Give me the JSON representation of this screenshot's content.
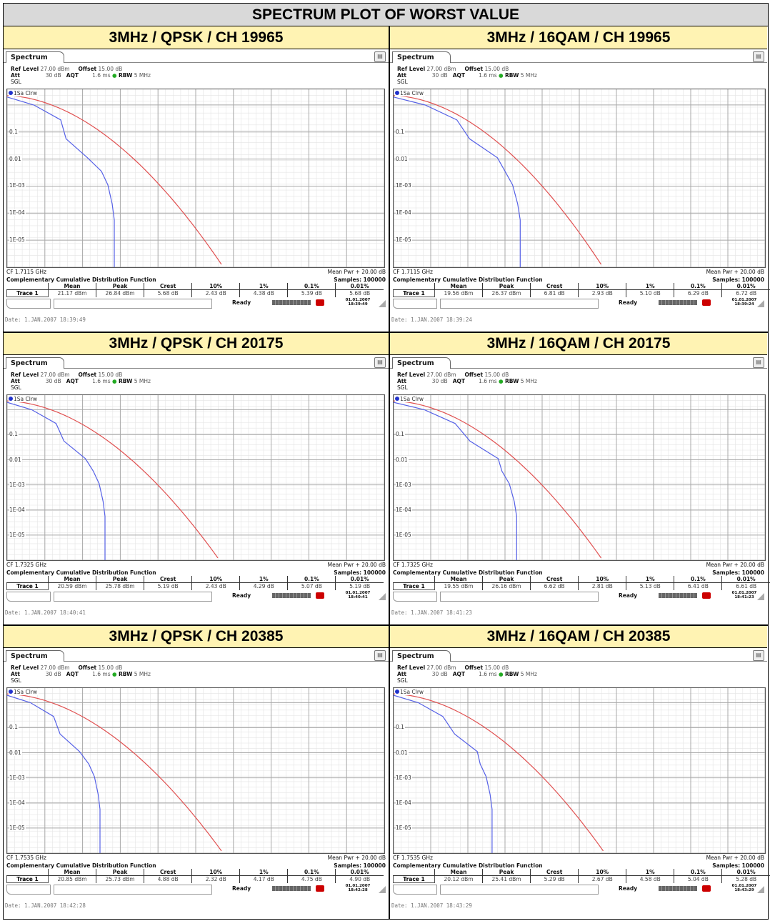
{
  "title": "SPECTRUM PLOT OF WORST VALUE",
  "colors": {
    "header_bg": "#d9d9d9",
    "cell_head_bg": "#fff3b3",
    "red_trace": "#e05050",
    "blue_trace": "#5560e6",
    "grid": "#c8c8c8"
  },
  "common": {
    "tab_label": "Spectrum",
    "ref_level_label": "Ref Level",
    "ref_level": "27.00 dBm",
    "offset_label": "Offset",
    "offset": "15.00 dB",
    "att_label": "Att",
    "att": "30 dB",
    "aqt_label": "AQT",
    "aqt": "1.6 ms",
    "rbw_label": "RBW",
    "rbw": "5 MHz",
    "sgl": "SGL",
    "trace_label": "1Sa Clrw",
    "y_ticks": [
      "0.1",
      "0.01",
      "1E-03",
      "1E-04",
      "1E-05"
    ],
    "mean_pwr": "Mean Pwr + 20.00 dB",
    "ccdf_title": "Complementary Cumulative Distribution Function",
    "samples": "Samples: 100000",
    "col_headers": [
      "Mean",
      "Peak",
      "Crest",
      "10%",
      "1%",
      "0.1%",
      "0.01%"
    ],
    "trace_btn": "Trace 1",
    "ready": "Ready",
    "settings_icon": "settings-icon"
  },
  "cells": [
    {
      "heading": "3MHz / QPSK / CH 19965",
      "cf": "CF 1.7115 GHz",
      "values": [
        "21.17 dBm",
        "26.84 dBm",
        "5.68 dB",
        "2.43 dB",
        "4.38 dB",
        "5.39 dB",
        "5.68 dB"
      ],
      "datetime": "01.01.2007\n18:39:49",
      "date": "Date: 1.JAN.2007  18:39:49"
    },
    {
      "heading": "3MHz / 16QAM / CH 19965",
      "cf": "CF 1.7115 GHz",
      "values": [
        "19.56 dBm",
        "26.37 dBm",
        "6.81 dB",
        "2.93 dB",
        "5.10 dB",
        "6.29 dB",
        "6.72 dB"
      ],
      "datetime": "01.01.2007\n18:39:24",
      "date": "Date: 1.JAN.2007  18:39:24"
    },
    {
      "heading": "3MHz / QPSK / CH 20175",
      "cf": "CF 1.7325 GHz",
      "values": [
        "20.59 dBm",
        "25.78 dBm",
        "5.19 dB",
        "2.43 dB",
        "4.29 dB",
        "5.07 dB",
        "5.19 dB"
      ],
      "datetime": "01.01.2007\n18:40:41",
      "date": "Date: 1.JAN.2007  18:40:41"
    },
    {
      "heading": "3MHz / 16QAM / CH 20175",
      "cf": "CF 1.7325 GHz",
      "values": [
        "19.55 dBm",
        "26.16 dBm",
        "6.62 dB",
        "2.81 dB",
        "5.13 dB",
        "6.41 dB",
        "6.61 dB"
      ],
      "datetime": "01.01.2007\n18:41:23",
      "date": "Date: 1.JAN.2007  18:41:23"
    },
    {
      "heading": "3MHz / QPSK / CH 20385",
      "cf": "CF 1.7535 GHz",
      "values": [
        "20.85 dBm",
        "25.73 dBm",
        "4.88 dB",
        "2.32 dB",
        "4.17 dB",
        "4.75 dB",
        "4.90 dB"
      ],
      "datetime": "01.01.2007\n18:42:28",
      "date": "Date: 1.JAN.2007  18:42:28"
    },
    {
      "heading": "3MHz / 16QAM / CH 20385",
      "cf": "CF 1.7535 GHz",
      "values": [
        "20.12 dBm",
        "25.41 dBm",
        "5.29 dB",
        "2.67 dB",
        "4.58 dB",
        "5.04 dB",
        "5.28 dB"
      ],
      "datetime": "01.01.2007\n18:43:29",
      "date": "Date: 1.JAN.2007  18:43:29"
    }
  ]
}
